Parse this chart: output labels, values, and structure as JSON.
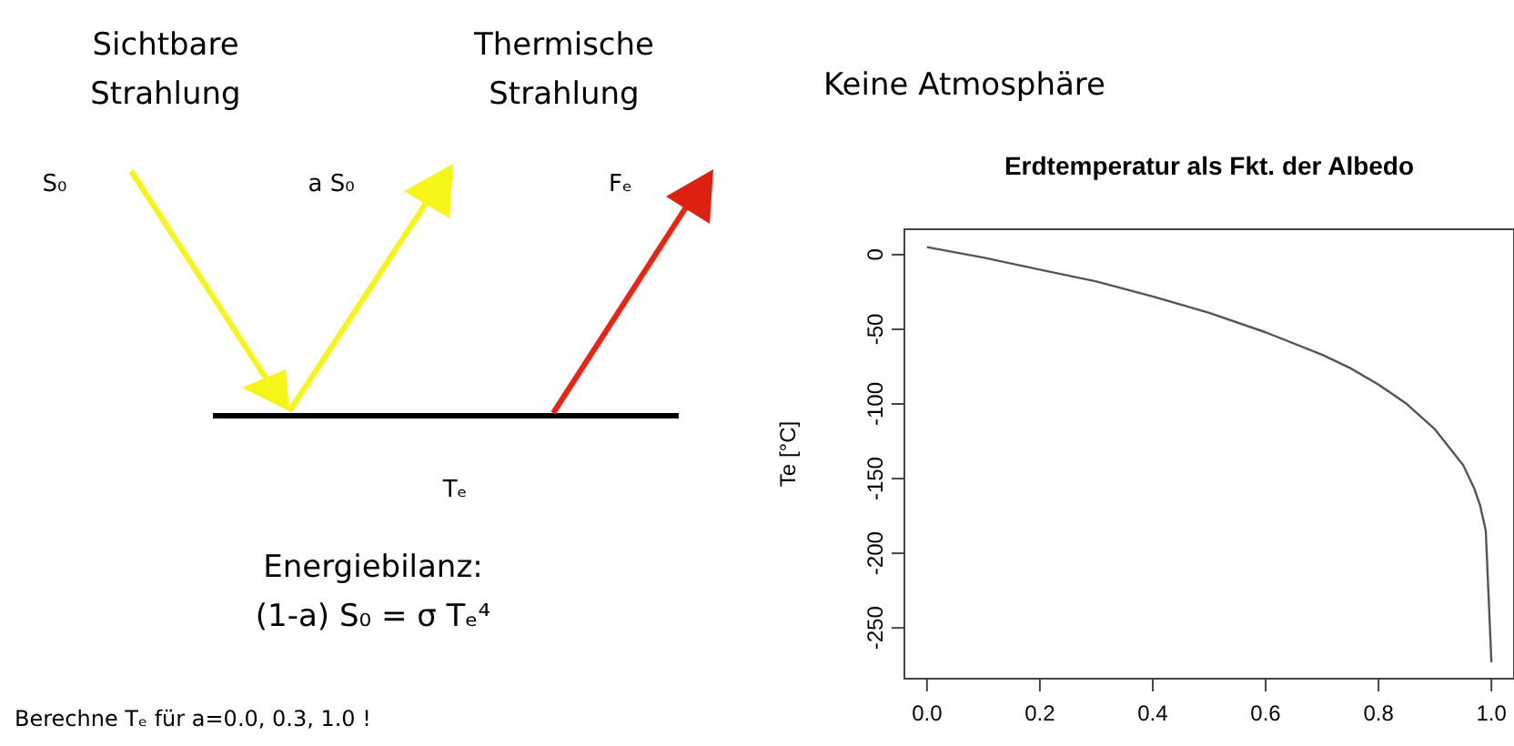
{
  "chart_data": {
    "type": "line",
    "title": "Erdtemperatur als Fkt. der Albedo",
    "ylabel": "Te [°C]",
    "x": [
      0,
      0.1,
      0.2,
      0.3,
      0.4,
      0.5,
      0.6,
      0.7,
      0.75,
      0.8,
      0.85,
      0.9,
      0.95,
      0.97,
      0.98,
      0.99,
      1.0
    ],
    "series": [
      {
        "color": "#555555",
        "values": [
          5,
          -2,
          -10,
          -18,
          -28,
          -39,
          -52,
          -67,
          -76,
          -87,
          -100,
          -117,
          -141,
          -157,
          -168,
          -185,
          -273
        ]
      }
    ],
    "xlim": [
      -0.04,
      1.04
    ],
    "ylim": [
      -284,
      17
    ],
    "xticks": [
      {
        "value": 0,
        "label": "0.0"
      },
      0.2,
      0.4,
      0.6,
      0.8,
      {
        "value": 1,
        "label": "1.0"
      }
    ],
    "yticks": [
      0,
      -50,
      -100,
      -150,
      -200,
      -250
    ],
    "grid": false,
    "marker": "none",
    "line_style": "solid",
    "annotations": [
      "Sichtbare Strahlung",
      "Thermische Strahlung",
      "Keine Atmosphäre",
      "S₀",
      "a S₀",
      "Fₑ",
      "Tₑ",
      "Energiebilanz:",
      "(1-a) S₀ = σ Tₑ⁴",
      "Berechne Tₑ für a=0.0, 0.3, 1.0 !"
    ]
  }
}
